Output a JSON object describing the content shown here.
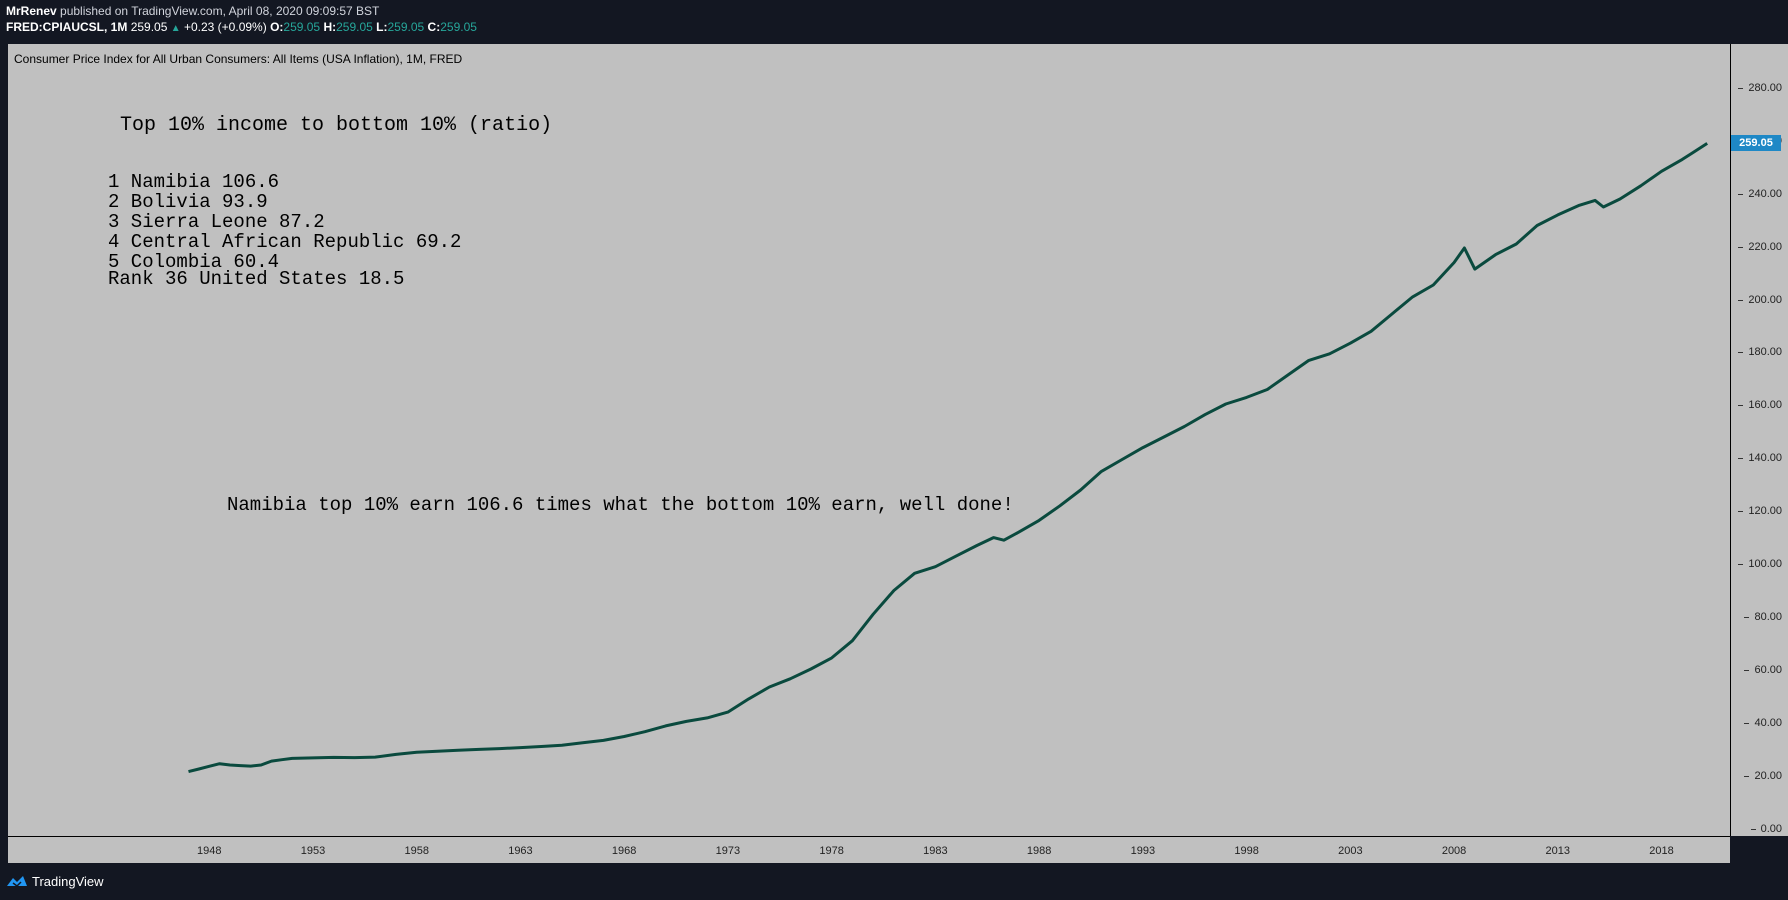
{
  "header": {
    "author": "MrRenev",
    "published_text": "published on TradingView.com, April 08, 2020 09:09:57 BST",
    "symbol": "FRED:CPIAUCSL, 1M",
    "last": "259.05",
    "change": "+0.23 (+0.09%)",
    "o_label": "O:",
    "o_value": "259.05",
    "h_label": "H:",
    "h_value": "259.05",
    "l_label": "L:",
    "l_value": "259.05",
    "c_label": "C:",
    "c_value": "259.05"
  },
  "chart_title": "Consumer Price Index for All Urban Consumers: All Items (USA Inflation), 1M, FRED",
  "notes": {
    "heading": "Top 10% income to bottom 10% (ratio)",
    "list": [
      "1 Namibia 106.6",
      "2 Bolivia 93.9",
      "3 Sierra Leone 87.2",
      "4 Central African Republic 69.2",
      "5 Colombia 60.4"
    ],
    "rank": "Rank 36 United States 18.5",
    "comment": "Namibia top 10% earn 106.6 times what the bottom 10% earn, well done!"
  },
  "last_price_label": "259.05",
  "footer": {
    "brand": "TradingView"
  },
  "colors": {
    "line": "#0a4a3e",
    "plot_bg": "#c0c0c0",
    "page_bg": "#131722",
    "last_price_bg": "#1e88c6",
    "up": "#26a69a"
  },
  "chart_data": {
    "type": "line",
    "title": "Consumer Price Index for All Urban Consumers: All Items (USA Inflation), 1M, FRED",
    "ylim": [
      0,
      290
    ],
    "xlim": [
      1938.3,
      2021.3
    ],
    "price_ticks": [
      "0.00",
      "20.00",
      "40.00",
      "60.00",
      "80.00",
      "100.00",
      "120.00",
      "140.00",
      "160.00",
      "180.00",
      "200.00",
      "220.00",
      "240.00",
      "260.00",
      "280.00"
    ],
    "time_ticks": [
      "1948",
      "1953",
      "1958",
      "1963",
      "1968",
      "1973",
      "1978",
      "1983",
      "1988",
      "1993",
      "1998",
      "2003",
      "2008",
      "2013",
      "2018"
    ],
    "series": [
      {
        "values": [
          [
            1947.0,
            21.5
          ],
          [
            1947.5,
            22.5
          ],
          [
            1948.0,
            23.5
          ],
          [
            1948.5,
            24.5
          ],
          [
            1949.0,
            24.0
          ],
          [
            1949.5,
            23.8
          ],
          [
            1950.0,
            23.6
          ],
          [
            1950.5,
            24.0
          ],
          [
            1951.0,
            25.5
          ],
          [
            1951.5,
            26.0
          ],
          [
            1952.0,
            26.5
          ],
          [
            1953.0,
            26.7
          ],
          [
            1954.0,
            26.9
          ],
          [
            1955.0,
            26.8
          ],
          [
            1956.0,
            27.0
          ],
          [
            1957.0,
            28.0
          ],
          [
            1958.0,
            28.8
          ],
          [
            1959.0,
            29.2
          ],
          [
            1960.0,
            29.6
          ],
          [
            1961.0,
            29.9
          ],
          [
            1962.0,
            30.2
          ],
          [
            1963.0,
            30.6
          ],
          [
            1964.0,
            31.0
          ],
          [
            1965.0,
            31.5
          ],
          [
            1966.0,
            32.4
          ],
          [
            1967.0,
            33.3
          ],
          [
            1968.0,
            34.8
          ],
          [
            1969.0,
            36.6
          ],
          [
            1970.0,
            38.8
          ],
          [
            1971.0,
            40.5
          ],
          [
            1972.0,
            41.8
          ],
          [
            1973.0,
            44.0
          ],
          [
            1974.0,
            49.0
          ],
          [
            1975.0,
            53.5
          ],
          [
            1976.0,
            56.6
          ],
          [
            1977.0,
            60.3
          ],
          [
            1978.0,
            64.5
          ],
          [
            1979.0,
            71.0
          ],
          [
            1980.0,
            81.0
          ],
          [
            1981.0,
            90.0
          ],
          [
            1982.0,
            96.5
          ],
          [
            1983.0,
            99.0
          ],
          [
            1984.0,
            103.0
          ],
          [
            1985.0,
            107.0
          ],
          [
            1985.8,
            110.0
          ],
          [
            1986.3,
            109.0
          ],
          [
            1987.0,
            112.0
          ],
          [
            1988.0,
            116.5
          ],
          [
            1989.0,
            122.0
          ],
          [
            1990.0,
            128.0
          ],
          [
            1991.0,
            135.0
          ],
          [
            1992.0,
            139.5
          ],
          [
            1993.0,
            144.0
          ],
          [
            1994.0,
            148.0
          ],
          [
            1995.0,
            152.0
          ],
          [
            1996.0,
            156.5
          ],
          [
            1997.0,
            160.5
          ],
          [
            1998.0,
            163.0
          ],
          [
            1999.0,
            166.0
          ],
          [
            2000.0,
            171.5
          ],
          [
            2001.0,
            177.0
          ],
          [
            2002.0,
            179.5
          ],
          [
            2003.0,
            183.5
          ],
          [
            2004.0,
            188.0
          ],
          [
            2005.0,
            194.5
          ],
          [
            2006.0,
            201.0
          ],
          [
            2007.0,
            205.5
          ],
          [
            2008.0,
            214.0
          ],
          [
            2008.5,
            219.5
          ],
          [
            2009.0,
            211.5
          ],
          [
            2010.0,
            217.0
          ],
          [
            2011.0,
            221.0
          ],
          [
            2012.0,
            228.0
          ],
          [
            2013.0,
            232.0
          ],
          [
            2014.0,
            235.5
          ],
          [
            2014.8,
            237.5
          ],
          [
            2015.2,
            235.0
          ],
          [
            2016.0,
            238.0
          ],
          [
            2017.0,
            243.0
          ],
          [
            2018.0,
            248.5
          ],
          [
            2019.0,
            253.0
          ],
          [
            2019.5,
            255.5
          ],
          [
            2020.2,
            259.05
          ]
        ]
      }
    ]
  }
}
